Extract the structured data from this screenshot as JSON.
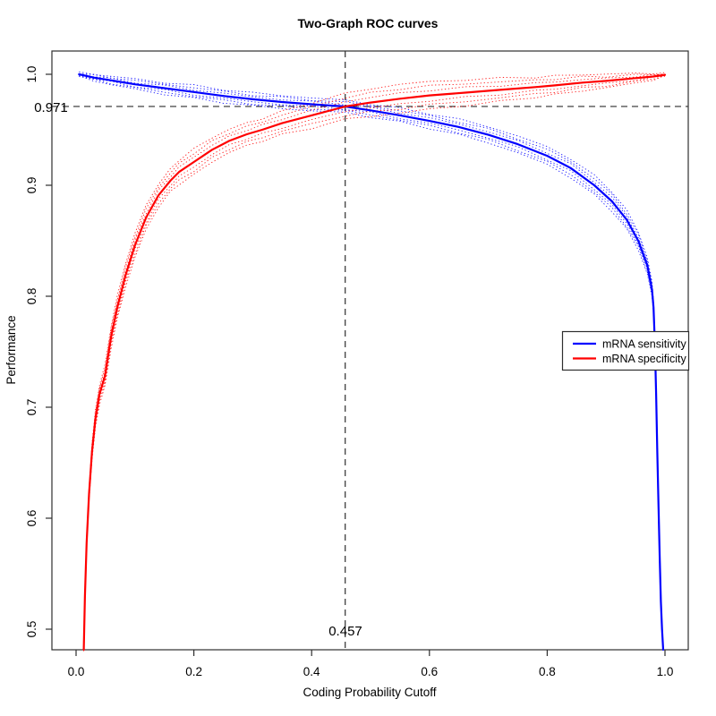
{
  "chart_data": {
    "type": "line",
    "title": "Two-Graph ROC curves",
    "xlabel": "Coding Probability Cutoff",
    "ylabel": "Performance",
    "xlim": [
      0.0,
      1.0
    ],
    "ylim": [
      0.48,
      1.02
    ],
    "grid": false,
    "axis_color": "#2e2e2e",
    "x_ticks": {
      "values": [
        0.0,
        0.2,
        0.4,
        0.6,
        0.8,
        1.0
      ],
      "labels": [
        "0.0",
        "0.2",
        "0.4",
        "0.6",
        "0.8",
        "1.0"
      ]
    },
    "y_ticks": {
      "values": [
        0.5,
        0.6,
        0.7,
        0.8,
        0.9,
        1.0
      ],
      "labels": [
        "0.5",
        "0.6",
        "0.7",
        "0.8",
        "0.9",
        "1.0"
      ]
    },
    "crosshair": {
      "x": 0.457,
      "y": 0.971,
      "x_label": "0.457",
      "y_label": "0.971",
      "line_style": "dashed",
      "color": "#2e2e2e"
    },
    "legend": {
      "position": "right-middle",
      "entries": [
        {
          "label": "mRNA sensitivity",
          "color": "#0000ff"
        },
        {
          "label": "mRNA specificity",
          "color": "#ff0000"
        }
      ]
    },
    "series": [
      {
        "name": "mRNA sensitivity",
        "color": "#0000ff",
        "style": "solid-with-dotted-ci",
        "x": [
          0.005,
          0.03,
          0.06,
          0.1,
          0.15,
          0.2,
          0.25,
          0.3,
          0.35,
          0.4,
          0.457,
          0.5,
          0.55,
          0.6,
          0.65,
          0.7,
          0.75,
          0.8,
          0.84,
          0.88,
          0.91,
          0.935,
          0.955,
          0.97,
          0.978,
          0.9805,
          0.983,
          0.985,
          0.987,
          0.989,
          0.991,
          0.993,
          0.995,
          0.997
        ],
        "y": [
          1.0,
          0.997,
          0.9945,
          0.991,
          0.9875,
          0.984,
          0.9805,
          0.9775,
          0.975,
          0.973,
          0.971,
          0.9675,
          0.963,
          0.958,
          0.9525,
          0.9455,
          0.937,
          0.9265,
          0.9155,
          0.9,
          0.8855,
          0.869,
          0.8495,
          0.8275,
          0.806,
          0.79,
          0.755,
          0.712,
          0.66,
          0.61,
          0.565,
          0.525,
          0.5,
          0.4815
        ],
        "ci_offset": [
          0.0012,
          0.002,
          0.0026,
          0.0032,
          0.0036,
          0.004,
          0.004,
          0.004,
          0.004,
          0.004,
          0.0038,
          0.004,
          0.0042,
          0.0045,
          0.0048,
          0.005,
          0.0052,
          0.0055,
          0.0058,
          0.006,
          0.006,
          0.0058,
          0.0055,
          0.005,
          0.0045,
          0.004,
          0.0035,
          0.003,
          0.0026,
          0.0022,
          0.0018,
          0.0015,
          0.0012,
          0.001
        ]
      },
      {
        "name": "mRNA specificity",
        "color": "#ff0000",
        "style": "solid-with-dotted-ci",
        "x": [
          0.013,
          0.015,
          0.018,
          0.022,
          0.027,
          0.033,
          0.04,
          0.049,
          0.06,
          0.07,
          0.084,
          0.1,
          0.119,
          0.14,
          0.16,
          0.175,
          0.2,
          0.231,
          0.26,
          0.29,
          0.316,
          0.35,
          0.4,
          0.457,
          0.5,
          0.55,
          0.6,
          0.661,
          0.72,
          0.78,
          0.813,
          0.86,
          0.9,
          0.95,
          0.98,
          1.0
        ],
        "y": [
          0.4815,
          0.53,
          0.578,
          0.622,
          0.66,
          0.69,
          0.712,
          0.728,
          0.765,
          0.79,
          0.819,
          0.846,
          0.871,
          0.891,
          0.904,
          0.912,
          0.921,
          0.932,
          0.94,
          0.946,
          0.95,
          0.956,
          0.963,
          0.971,
          0.9745,
          0.978,
          0.981,
          0.9835,
          0.986,
          0.9885,
          0.99,
          0.9925,
          0.994,
          0.9965,
          0.998,
          0.9995
        ],
        "ci_offset": [
          0.001,
          0.002,
          0.003,
          0.004,
          0.005,
          0.0055,
          0.006,
          0.0065,
          0.007,
          0.007,
          0.0072,
          0.0075,
          0.0075,
          0.0072,
          0.007,
          0.0075,
          0.008,
          0.0075,
          0.0072,
          0.007,
          0.007,
          0.0072,
          0.0078,
          0.008,
          0.0085,
          0.009,
          0.0085,
          0.008,
          0.0072,
          0.0062,
          0.0058,
          0.005,
          0.0042,
          0.003,
          0.002,
          0.0008
        ]
      }
    ]
  }
}
